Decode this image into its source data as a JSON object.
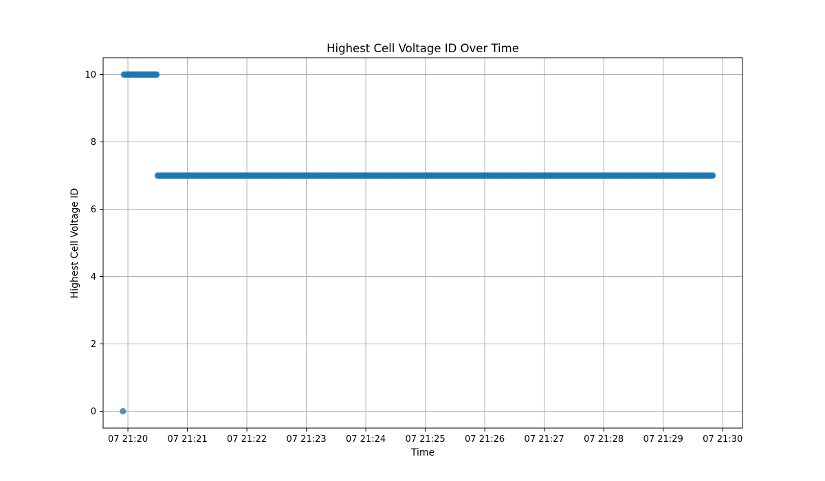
{
  "chart_data": {
    "type": "scatter",
    "title": "Highest Cell Voltage ID Over Time",
    "xlabel": "Time",
    "ylabel": "Highest Cell Voltage ID",
    "grid": true,
    "legend": "none",
    "color": "#1f77b4",
    "x_ticks": [
      "07 21:20",
      "07 21:21",
      "07 21:22",
      "07 21:23",
      "07 21:24",
      "07 21:25",
      "07 21:26",
      "07 21:27",
      "07 21:28",
      "07 21:29",
      "07 21:30"
    ],
    "y_ticks": [
      0,
      2,
      4,
      6,
      8,
      10
    ],
    "xlim": [
      "21:19:35",
      "21:30:20"
    ],
    "ylim": [
      -0.5,
      10.5
    ],
    "series": [
      {
        "runs": [
          {
            "start": "21:19:55",
            "end": "21:19:55",
            "value": 0
          },
          {
            "start": "21:19:56",
            "end": "21:20:29",
            "value": 10
          },
          {
            "start": "21:20:30",
            "end": "21:29:50",
            "value": 7
          }
        ]
      }
    ]
  }
}
